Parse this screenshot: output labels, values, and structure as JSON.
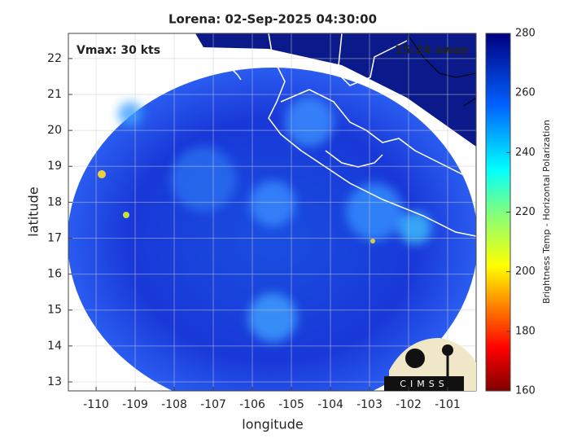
{
  "chart_data": {
    "type": "map",
    "title": "Lorena: 02-Sep-2025 04:30:00",
    "annotations": [
      "Vmax: 30 kts",
      "15:24 away"
    ],
    "logo": "CIMSS",
    "xlabel": "longitude",
    "ylabel": "latitude",
    "xlim": [
      -110.71,
      -100.27
    ],
    "ylim": [
      12.75,
      22.7
    ],
    "xticks": [
      -110,
      -109,
      -108,
      -107,
      -106,
      -105,
      -104,
      -103,
      -102,
      -101
    ],
    "yticks": [
      13,
      14,
      15,
      16,
      17,
      18,
      19,
      20,
      21,
      22
    ],
    "grid": true,
    "colorbar": {
      "label": "Brightness Temp - Horizontal Polarization",
      "clim": [
        160,
        280
      ],
      "ticks": [
        160,
        180,
        200,
        220,
        240,
        260,
        280
      ]
    }
  }
}
